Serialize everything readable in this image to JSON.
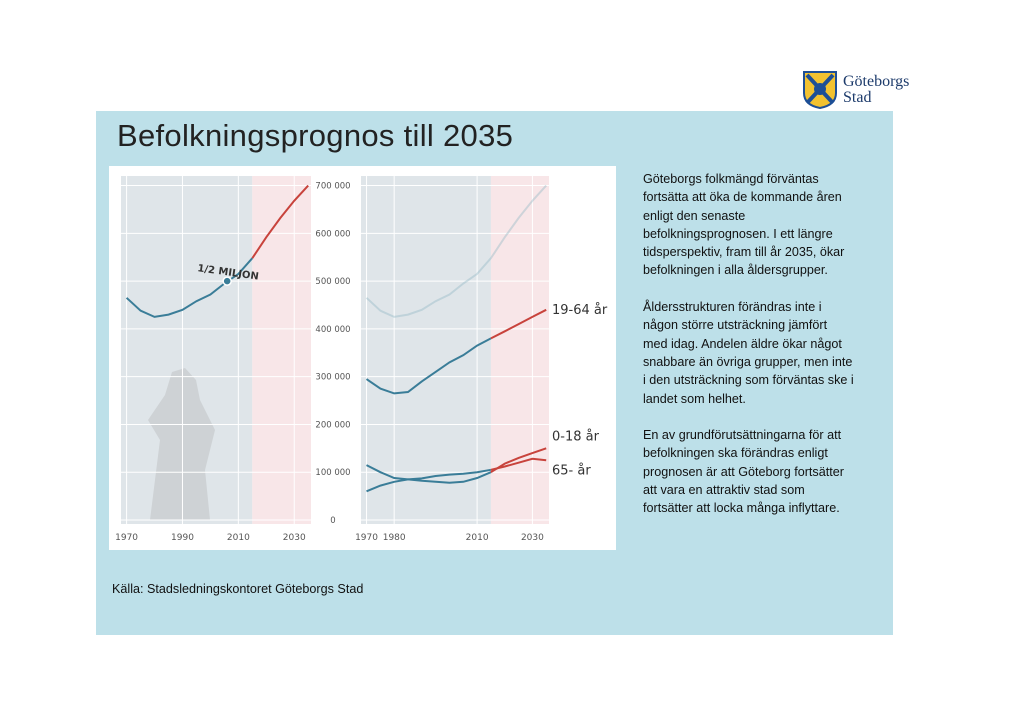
{
  "logo": [
    "Göteborgs",
    "Stad"
  ],
  "title": "Befolkningsprognos till 2035",
  "paragraphs": [
    [
      "Göteborgs folkmängd förväntas",
      "fortsätta att öka de kommande åren",
      "enligt den senaste",
      "befolkningsprognosen. I ett längre",
      "tidsperspektiv, fram till år 2035, ökar",
      "befolkningen i alla åldersgrupper."
    ],
    [
      "Åldersstrukturen förändras inte i",
      "någon större utsträckning jämfört",
      "med idag. Andelen äldre ökar något",
      "snabbare än övriga grupper, men inte",
      "i den utsträckning som förväntas ske i",
      "landet som helhet."
    ],
    [
      "En av grundförutsättningarna för att",
      "befolkningen ska förändras enligt",
      "prognosen är att Göteborg fortsätter",
      "att vara en attraktiv stad som",
      "fortsätter att locka många inflyttare."
    ]
  ],
  "source": "Källa: Stadsledningskontoret Göteborgs Stad",
  "chart_data": [
    {
      "type": "line",
      "x": [
        1970,
        1975,
        1980,
        1985,
        1990,
        1995,
        2000,
        2005,
        2010,
        2015,
        2020,
        2025,
        2030,
        2035
      ],
      "values": [
        465000,
        438000,
        425000,
        430000,
        440000,
        458000,
        472000,
        495000,
        515000,
        548000,
        592000,
        632000,
        668000,
        700000
      ],
      "color": "#3a7d98",
      "forecast_color": "#c8433c",
      "forecast_start": 2015,
      "annotation": {
        "text": "1/2 MILJON",
        "x": 2006,
        "y": 500000
      },
      "xlim": [
        1968,
        2036
      ],
      "ylim": [
        0,
        720000
      ],
      "xticks": [
        1970,
        1990,
        2010,
        2030
      ],
      "yticks": [
        0,
        {
          "value": 100000,
          "label": "100 000"
        },
        {
          "value": 200000,
          "label": "200 000"
        },
        {
          "value": 300000,
          "label": "300 000"
        },
        {
          "value": 400000,
          "label": "400 000"
        },
        {
          "value": 500000,
          "label": "500 000"
        },
        {
          "value": 600000,
          "label": "600 000"
        },
        {
          "value": 700000,
          "label": "700 000"
        }
      ],
      "grid": true
    },
    {
      "type": "line",
      "x": [
        1970,
        1975,
        1980,
        1985,
        1990,
        1995,
        2000,
        2005,
        2010,
        2015,
        2020,
        2025,
        2030,
        2035
      ],
      "series": [
        {
          "name": "19-64 år",
          "color": "#3a7d98",
          "values": [
            295000,
            275000,
            265000,
            268000,
            290000,
            310000,
            330000,
            345000,
            365000,
            380000,
            395000,
            410000,
            425000,
            440000
          ]
        },
        {
          "name": "0-18 år",
          "color": "#3a7d98",
          "values": [
            115000,
            100000,
            88000,
            85000,
            82000,
            80000,
            78000,
            80000,
            88000,
            100000,
            118000,
            130000,
            140000,
            150000
          ]
        },
        {
          "name": "65- år",
          "color": "#3a7d98",
          "values": [
            60000,
            72000,
            80000,
            85000,
            87000,
            92000,
            95000,
            97000,
            100000,
            105000,
            112000,
            120000,
            128000,
            125000
          ]
        }
      ],
      "forecast_color": "#c8433c",
      "forecast_start": 2015,
      "xlim": [
        1968,
        2036
      ],
      "ylim": [
        0,
        720000
      ],
      "xticks": [
        1970,
        1980,
        2010,
        2030
      ],
      "grid": true
    }
  ]
}
